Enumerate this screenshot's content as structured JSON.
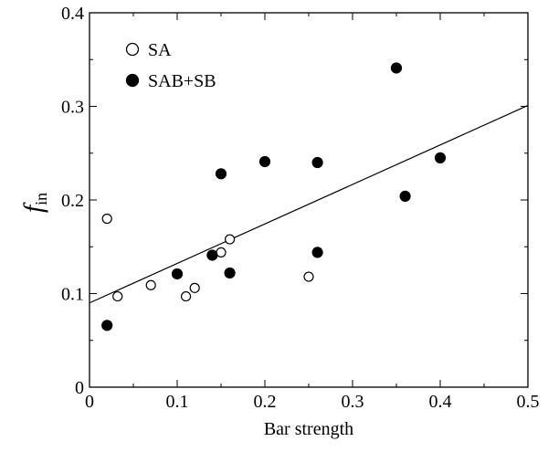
{
  "chart_data": {
    "type": "scatter",
    "xlabel": "Bar strength",
    "ylabel": {
      "main": "f",
      "subscript": "in"
    },
    "xlim": [
      0,
      0.5
    ],
    "ylim": [
      0,
      0.4
    ],
    "x_ticks": [
      0,
      0.1,
      0.2,
      0.3,
      0.4,
      0.5
    ],
    "x_tick_labels": [
      "0",
      "0.1",
      "0.2",
      "0.3",
      "0.4",
      "0.5"
    ],
    "y_ticks": [
      0,
      0.1,
      0.2,
      0.3,
      0.4
    ],
    "y_tick_labels": [
      "0",
      "0.1",
      "0.2",
      "0.3",
      "0.4"
    ],
    "grid": false,
    "legend_position": "top-left",
    "series": [
      {
        "name": "SA",
        "marker": "open-circle",
        "points": [
          [
            0.02,
            0.18
          ],
          [
            0.032,
            0.097
          ],
          [
            0.07,
            0.109
          ],
          [
            0.11,
            0.097
          ],
          [
            0.12,
            0.106
          ],
          [
            0.15,
            0.144
          ],
          [
            0.16,
            0.158
          ],
          [
            0.25,
            0.118
          ]
        ]
      },
      {
        "name": "SAB+SB",
        "marker": "filled-circle",
        "points": [
          [
            0.02,
            0.066
          ],
          [
            0.1,
            0.121
          ],
          [
            0.14,
            0.141
          ],
          [
            0.15,
            0.228
          ],
          [
            0.16,
            0.122
          ],
          [
            0.2,
            0.241
          ],
          [
            0.26,
            0.24
          ],
          [
            0.26,
            0.144
          ],
          [
            0.35,
            0.341
          ],
          [
            0.36,
            0.204
          ],
          [
            0.4,
            0.245
          ]
        ]
      }
    ],
    "fit_line": {
      "x": [
        0,
        0.5
      ],
      "y": [
        0.09,
        0.301
      ]
    }
  }
}
